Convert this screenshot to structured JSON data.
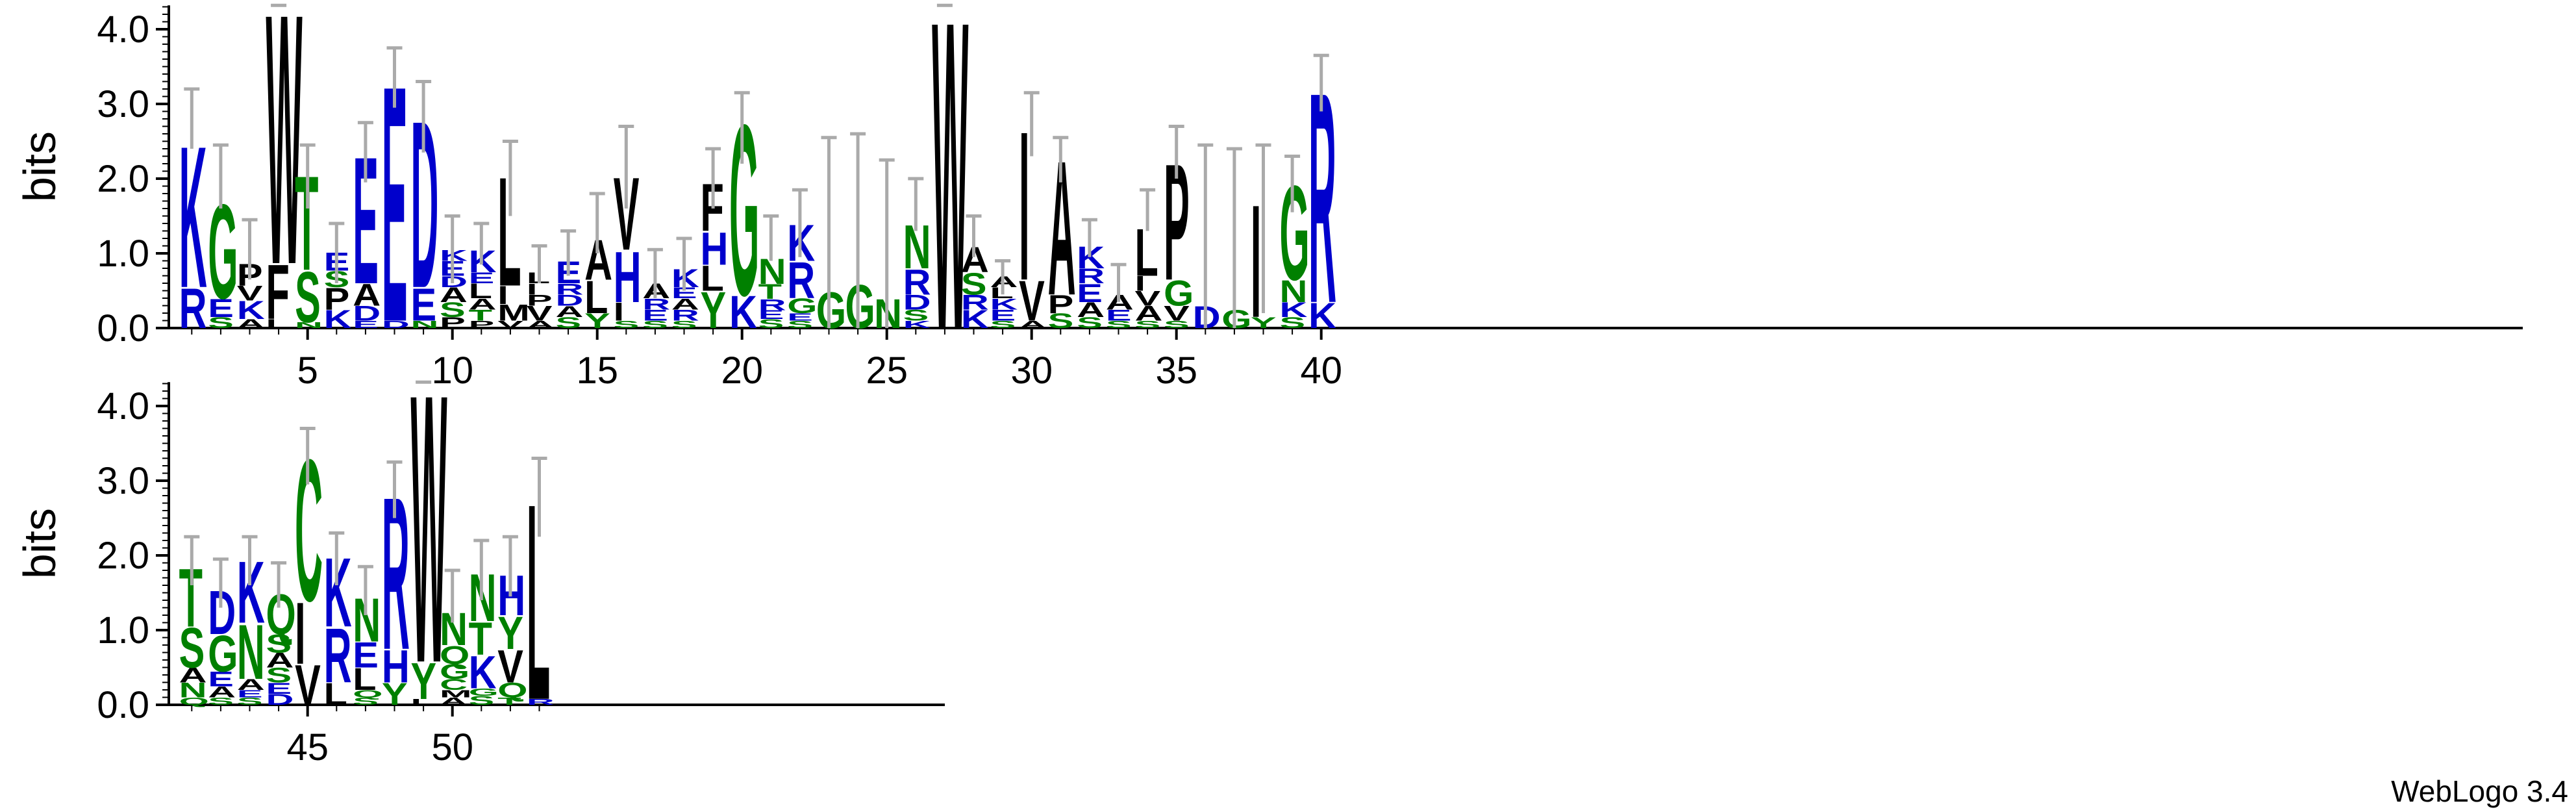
{
  "chart_data": {
    "type": "sequence-logo",
    "ylabel": "bits",
    "ylim": [
      0,
      4.32
    ],
    "yticks": [
      "0.0",
      "1.0",
      "2.0",
      "3.0",
      "4.0"
    ],
    "positions_per_row": 40,
    "x_tick_labels": [
      5,
      10,
      15,
      20,
      25,
      30,
      35,
      40,
      45,
      50
    ],
    "credit": "WebLogo 3.4",
    "colors": {
      "basic": "#0000cc",
      "polar": "#008000",
      "hydrophobic": "#000000"
    },
    "positions": [
      {
        "pos": 1,
        "err": [
          2.4,
          3.2
        ],
        "letters": [
          [
            "R",
            0.55
          ],
          [
            "K",
            1.95
          ]
        ]
      },
      {
        "pos": 2,
        "err": [
          1.6,
          2.45
        ],
        "letters": [
          [
            "S",
            0.15
          ],
          [
            "E",
            0.25
          ],
          [
            "G",
            1.3
          ]
        ]
      },
      {
        "pos": 3,
        "err": [
          0.65,
          1.45
        ],
        "letters": [
          [
            "A",
            0.12
          ],
          [
            "K",
            0.25
          ],
          [
            "V",
            0.2
          ],
          [
            "P",
            0.3
          ]
        ]
      },
      {
        "pos": 4,
        "err": [
          4.3,
          4.32
        ],
        "letters": [
          [
            "I",
            0.12
          ],
          [
            "F",
            0.75
          ],
          [
            "W",
            3.45
          ]
        ]
      },
      {
        "pos": 5,
        "err": [
          1.6,
          2.45
        ],
        "letters": [
          [
            "N",
            0.08
          ],
          [
            "S",
            0.7
          ],
          [
            "T",
            1.3
          ]
        ]
      },
      {
        "pos": 6,
        "err": [
          0.6,
          1.4
        ],
        "letters": [
          [
            "K",
            0.25
          ],
          [
            "P",
            0.3
          ],
          [
            "S",
            0.22
          ],
          [
            "E",
            0.25
          ]
        ]
      },
      {
        "pos": 7,
        "err": [
          1.95,
          2.75
        ],
        "letters": [
          [
            "E",
            0.1
          ],
          [
            "D",
            0.2
          ],
          [
            "A",
            0.3
          ],
          [
            "E",
            1.75
          ]
        ]
      },
      {
        "pos": 8,
        "err": [
          2.95,
          3.75
        ],
        "letters": [
          [
            "D",
            0.1
          ],
          [
            "E",
            3.25
          ]
        ]
      },
      {
        "pos": 9,
        "err": [
          2.35,
          3.3
        ],
        "letters": [
          [
            "N",
            0.1
          ],
          [
            "E",
            0.45
          ],
          [
            "D",
            2.3
          ]
        ]
      },
      {
        "pos": 10,
        "err": [
          0.6,
          1.5
        ],
        "letters": [
          [
            "P",
            0.15
          ],
          [
            "S",
            0.2
          ],
          [
            "A",
            0.2
          ],
          [
            "D",
            0.15
          ],
          [
            "E",
            0.2
          ],
          [
            "K",
            0.15
          ]
        ]
      },
      {
        "pos": 11,
        "err": [
          0.85,
          1.4
        ],
        "letters": [
          [
            "P",
            0.1
          ],
          [
            "T",
            0.15
          ],
          [
            "A",
            0.15
          ],
          [
            "L",
            0.2
          ],
          [
            "E",
            0.15
          ],
          [
            "K",
            0.3
          ]
        ]
      },
      {
        "pos": 12,
        "err": [
          1.5,
          2.5
        ],
        "letters": [
          [
            "V",
            0.1
          ],
          [
            "M",
            0.22
          ],
          [
            "I",
            0.25
          ],
          [
            "L",
            1.5
          ]
        ]
      },
      {
        "pos": 13,
        "err": [
          0.6,
          1.1
        ],
        "letters": [
          [
            "A",
            0.1
          ],
          [
            "V",
            0.2
          ],
          [
            "P",
            0.15
          ],
          [
            "I",
            0.15
          ],
          [
            "L",
            0.15
          ]
        ]
      },
      {
        "pos": 14,
        "err": [
          0.7,
          1.3
        ],
        "letters": [
          [
            "S",
            0.15
          ],
          [
            "A",
            0.15
          ],
          [
            "D",
            0.15
          ],
          [
            "R",
            0.15
          ],
          [
            "E",
            0.3
          ]
        ]
      },
      {
        "pos": 15,
        "err": [
          1.0,
          1.8
        ],
        "letters": [
          [
            "Y",
            0.2
          ],
          [
            "L",
            0.45
          ],
          [
            "A",
            0.55
          ]
        ]
      },
      {
        "pos": 16,
        "err": [
          1.6,
          2.7
        ],
        "letters": [
          [
            "S",
            0.1
          ],
          [
            "I",
            0.25
          ],
          [
            "H",
            0.7
          ],
          [
            "V",
            1.0
          ]
        ]
      },
      {
        "pos": 17,
        "err": [
          0.4,
          1.05
        ],
        "letters": [
          [
            "S",
            0.1
          ],
          [
            "E",
            0.15
          ],
          [
            "R",
            0.15
          ],
          [
            "A",
            0.2
          ]
        ]
      },
      {
        "pos": 18,
        "err": [
          0.5,
          1.2
        ],
        "letters": [
          [
            "S",
            0.1
          ],
          [
            "R",
            0.15
          ],
          [
            "A",
            0.15
          ],
          [
            "E",
            0.15
          ],
          [
            "K",
            0.25
          ]
        ]
      },
      {
        "pos": 19,
        "err": [
          1.6,
          2.4
        ],
        "letters": [
          [
            "Y",
            0.5
          ],
          [
            "L",
            0.35
          ],
          [
            "H",
            0.45
          ],
          [
            "F",
            0.65
          ]
        ]
      },
      {
        "pos": 20,
        "err": [
          2.2,
          3.15
        ],
        "letters": [
          [
            "K",
            0.45
          ],
          [
            "G",
            2.35
          ]
        ]
      },
      {
        "pos": 21,
        "err": [
          0.9,
          1.5
        ],
        "letters": [
          [
            "S",
            0.12
          ],
          [
            "E",
            0.12
          ],
          [
            "R",
            0.15
          ],
          [
            "T",
            0.2
          ],
          [
            "N",
            0.35
          ]
        ]
      },
      {
        "pos": 22,
        "err": [
          0.95,
          1.85
        ],
        "letters": [
          [
            "S",
            0.1
          ],
          [
            "E",
            0.1
          ],
          [
            "G",
            0.2
          ],
          [
            "R",
            0.5
          ],
          [
            "K",
            0.5
          ]
        ]
      },
      {
        "pos": 23,
        "err": [
          0.0,
          2.55
        ],
        "letters": [
          [
            "G",
            0.5
          ]
        ]
      },
      {
        "pos": 24,
        "err": [
          0.0,
          2.6
        ],
        "letters": [
          [
            "G",
            0.6
          ]
        ]
      },
      {
        "pos": 25,
        "err": [
          0.0,
          2.25
        ],
        "letters": [
          [
            "N",
            0.4
          ]
        ]
      },
      {
        "pos": 26,
        "err": [
          1.3,
          2.0
        ],
        "letters": [
          [
            "K",
            0.1
          ],
          [
            "S",
            0.15
          ],
          [
            "D",
            0.2
          ],
          [
            "R",
            0.35
          ],
          [
            "N",
            0.6
          ]
        ]
      },
      {
        "pos": 27,
        "err": [
          4.3,
          4.32
        ],
        "letters": [
          [
            "W",
            4.25
          ]
        ]
      },
      {
        "pos": 28,
        "err": [
          0.95,
          1.5
        ],
        "letters": [
          [
            "K",
            0.25
          ],
          [
            "R",
            0.2
          ],
          [
            "S",
            0.3
          ],
          [
            "A",
            0.35
          ]
        ]
      },
      {
        "pos": 29,
        "err": [
          0.45,
          0.9
        ],
        "letters": [
          [
            "S",
            0.1
          ],
          [
            "E",
            0.15
          ],
          [
            "K",
            0.15
          ],
          [
            "L",
            0.15
          ],
          [
            "A",
            0.15
          ]
        ]
      },
      {
        "pos": 30,
        "err": [
          2.3,
          3.15
        ],
        "letters": [
          [
            "A",
            0.1
          ],
          [
            "V",
            0.55
          ],
          [
            "I",
            2.05
          ]
        ]
      },
      {
        "pos": 31,
        "err": [
          1.95,
          2.55
        ],
        "letters": [
          [
            "S",
            0.2
          ],
          [
            "P",
            0.25
          ],
          [
            "A",
            1.85
          ]
        ]
      },
      {
        "pos": 32,
        "err": [
          0.95,
          1.45
        ],
        "letters": [
          [
            "S",
            0.15
          ],
          [
            "A",
            0.2
          ],
          [
            "E",
            0.25
          ],
          [
            "R",
            0.2
          ],
          [
            "K",
            0.3
          ]
        ]
      },
      {
        "pos": 33,
        "err": [
          0.35,
          0.85
        ],
        "letters": [
          [
            "S",
            0.1
          ],
          [
            "E",
            0.15
          ],
          [
            "A",
            0.2
          ]
        ]
      },
      {
        "pos": 34,
        "err": [
          1.3,
          1.85
        ],
        "letters": [
          [
            "S",
            0.1
          ],
          [
            "A",
            0.2
          ],
          [
            "V",
            0.2
          ],
          [
            "I",
            0.2
          ],
          [
            "L",
            0.65
          ]
        ]
      },
      {
        "pos": 35,
        "err": [
          2.0,
          2.7
        ],
        "letters": [
          [
            "S",
            0.1
          ],
          [
            "V",
            0.2
          ],
          [
            "G",
            0.35
          ],
          [
            "P",
            1.6
          ]
        ]
      },
      {
        "pos": 36,
        "err": [
          0.0,
          2.45
        ],
        "letters": [
          [
            "D",
            0.3
          ]
        ]
      },
      {
        "pos": 37,
        "err": [
          0.0,
          2.4
        ],
        "letters": [
          [
            "G",
            0.25
          ]
        ]
      },
      {
        "pos": 38,
        "err": [
          0.2,
          2.45
        ],
        "letters": [
          [
            "Y",
            0.15
          ],
          [
            "I",
            1.55
          ]
        ]
      },
      {
        "pos": 39,
        "err": [
          1.55,
          2.3
        ],
        "letters": [
          [
            "S",
            0.15
          ],
          [
            "K",
            0.2
          ],
          [
            "N",
            0.3
          ],
          [
            "G",
            1.3
          ]
        ]
      },
      {
        "pos": 40,
        "err": [
          2.9,
          3.65
        ],
        "letters": [
          [
            "K",
            0.35
          ],
          [
            "R",
            2.9
          ]
        ]
      },
      {
        "pos": 41,
        "err": [
          1.6,
          2.25
        ],
        "letters": [
          [
            "Q",
            0.1
          ],
          [
            "N",
            0.2
          ],
          [
            "A",
            0.2
          ],
          [
            "S",
            0.55
          ],
          [
            "T",
            0.8
          ]
        ]
      },
      {
        "pos": 42,
        "err": [
          1.3,
          1.95
        ],
        "letters": [
          [
            "S",
            0.1
          ],
          [
            "A",
            0.15
          ],
          [
            "E",
            0.2
          ],
          [
            "G",
            0.5
          ],
          [
            "D",
            0.6
          ]
        ]
      },
      {
        "pos": 43,
        "err": [
          1.6,
          2.25
        ],
        "letters": [
          [
            "S",
            0.1
          ],
          [
            "E",
            0.1
          ],
          [
            "A",
            0.15
          ],
          [
            "N",
            0.75
          ],
          [
            "K",
            0.85
          ]
        ]
      },
      {
        "pos": 44,
        "err": [
          1.3,
          1.9
        ],
        "letters": [
          [
            "D",
            0.15
          ],
          [
            "E",
            0.15
          ],
          [
            "S",
            0.2
          ],
          [
            "A",
            0.2
          ],
          [
            "S",
            0.25
          ],
          [
            "Q",
            0.55
          ]
        ]
      },
      {
        "pos": 45,
        "err": [
          2.95,
          3.7
        ],
        "letters": [
          [
            "V",
            0.55
          ],
          [
            "I",
            0.85
          ],
          [
            "C",
            1.95
          ]
        ]
      },
      {
        "pos": 46,
        "err": [
          1.6,
          2.3
        ],
        "letters": [
          [
            "L",
            0.3
          ],
          [
            "R",
            0.75
          ],
          [
            "K",
            0.95
          ]
        ]
      },
      {
        "pos": 47,
        "err": [
          1.2,
          1.85
        ],
        "letters": [
          [
            "S",
            0.1
          ],
          [
            "Q",
            0.1
          ],
          [
            "L",
            0.3
          ],
          [
            "E",
            0.35
          ],
          [
            "N",
            0.6
          ]
        ]
      },
      {
        "pos": 48,
        "err": [
          2.5,
          3.25
        ],
        "letters": [
          [
            "Y",
            0.3
          ],
          [
            "H",
            0.45
          ],
          [
            "R",
            2.1
          ]
        ]
      },
      {
        "pos": 49,
        "err": [
          4.3,
          4.32
        ],
        "letters": [
          [
            "L",
            0.08
          ],
          [
            "Y",
            0.5
          ],
          [
            "W",
            3.7
          ]
        ]
      },
      {
        "pos": 50,
        "err": [
          1.1,
          1.8
        ],
        "letters": [
          [
            "A",
            0.1
          ],
          [
            "M",
            0.1
          ],
          [
            "C",
            0.15
          ],
          [
            "G",
            0.2
          ],
          [
            "Q",
            0.25
          ],
          [
            "N",
            0.45
          ]
        ]
      },
      {
        "pos": 51,
        "err": [
          1.4,
          2.2
        ],
        "letters": [
          [
            "S",
            0.12
          ],
          [
            "G",
            0.1
          ],
          [
            "K",
            0.45
          ],
          [
            "T",
            0.45
          ],
          [
            "N",
            0.65
          ]
        ]
      },
      {
        "pos": 52,
        "err": [
          1.45,
          2.25
        ],
        "letters": [
          [
            "T",
            0.1
          ],
          [
            "Q",
            0.2
          ],
          [
            "V",
            0.45
          ],
          [
            "Y",
            0.45
          ],
          [
            "H",
            0.55
          ]
        ]
      },
      {
        "pos": 53,
        "err": [
          2.25,
          3.3
        ],
        "letters": [
          [
            "R",
            0.08
          ],
          [
            "L",
            2.7
          ]
        ]
      }
    ]
  }
}
